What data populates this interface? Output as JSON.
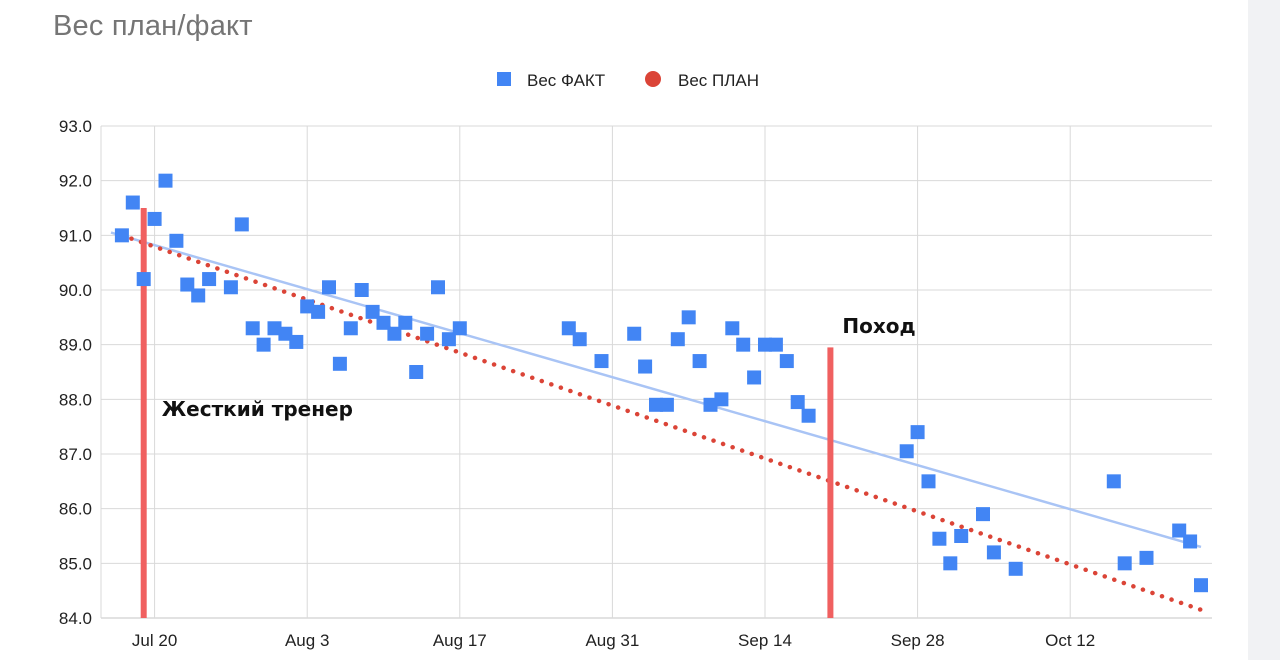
{
  "title": "Вес план/факт",
  "colors": {
    "fact": "#4285f4",
    "plan": "#db4437",
    "trend": "#a9c4f5",
    "marker": "#f06060",
    "grid": "#d9d9d9"
  },
  "chart_data": {
    "type": "scatter",
    "title": "Вес план/факт",
    "legend": {
      "placement": "top",
      "entries": [
        "Вес ФАКТ",
        "Вес ПЛАН"
      ]
    },
    "grid": true,
    "x_axis": {
      "type": "date",
      "range": [
        "2020-07-16",
        "2020-10-24"
      ],
      "ticks": [
        "2020-07-20",
        "2020-08-03",
        "2020-08-17",
        "2020-08-31",
        "2020-09-14",
        "2020-09-28",
        "2020-10-12"
      ],
      "tick_labels": [
        "Jul 20",
        "Aug 3",
        "Aug 17",
        "Aug 31",
        "Sep 14",
        "Sep 28",
        "Oct 12"
      ]
    },
    "y_axis": {
      "range": [
        84.0,
        93.0
      ],
      "ticks": [
        84.0,
        85.0,
        86.0,
        87.0,
        88.0,
        89.0,
        90.0,
        91.0,
        92.0,
        93.0
      ],
      "tick_labels": [
        "84.0",
        "85.0",
        "86.0",
        "87.0",
        "88.0",
        "89.0",
        "90.0",
        "91.0",
        "92.0",
        "93.0"
      ]
    },
    "series": [
      {
        "name": "Вес ФАКТ",
        "marker": "square",
        "points": [
          [
            "2020-07-17",
            91.0
          ],
          [
            "2020-07-18",
            91.6
          ],
          [
            "2020-07-19",
            90.2
          ],
          [
            "2020-07-20",
            91.3
          ],
          [
            "2020-07-21",
            92.0
          ],
          [
            "2020-07-22",
            90.9
          ],
          [
            "2020-07-23",
            90.1
          ],
          [
            "2020-07-24",
            89.9
          ],
          [
            "2020-07-25",
            90.2
          ],
          [
            "2020-07-27",
            90.05
          ],
          [
            "2020-07-28",
            91.2
          ],
          [
            "2020-07-29",
            89.3
          ],
          [
            "2020-07-30",
            89.0
          ],
          [
            "2020-07-31",
            89.3
          ],
          [
            "2020-08-01",
            89.2
          ],
          [
            "2020-08-02",
            89.05
          ],
          [
            "2020-08-03",
            89.7
          ],
          [
            "2020-08-04",
            89.6
          ],
          [
            "2020-08-05",
            90.05
          ],
          [
            "2020-08-06",
            88.65
          ],
          [
            "2020-08-07",
            89.3
          ],
          [
            "2020-08-08",
            90.0
          ],
          [
            "2020-08-09",
            89.6
          ],
          [
            "2020-08-10",
            89.4
          ],
          [
            "2020-08-11",
            89.2
          ],
          [
            "2020-08-12",
            89.4
          ],
          [
            "2020-08-13",
            88.5
          ],
          [
            "2020-08-14",
            89.2
          ],
          [
            "2020-08-15",
            90.05
          ],
          [
            "2020-08-16",
            89.1
          ],
          [
            "2020-08-17",
            89.3
          ],
          [
            "2020-08-27",
            89.3
          ],
          [
            "2020-08-28",
            89.1
          ],
          [
            "2020-08-30",
            88.7
          ],
          [
            "2020-09-02",
            89.2
          ],
          [
            "2020-09-03",
            88.6
          ],
          [
            "2020-09-04",
            87.9
          ],
          [
            "2020-09-05",
            87.9
          ],
          [
            "2020-09-06",
            89.1
          ],
          [
            "2020-09-07",
            89.5
          ],
          [
            "2020-09-08",
            88.7
          ],
          [
            "2020-09-09",
            87.9
          ],
          [
            "2020-09-10",
            88.0
          ],
          [
            "2020-09-11",
            89.3
          ],
          [
            "2020-09-12",
            89.0
          ],
          [
            "2020-09-13",
            88.4
          ],
          [
            "2020-09-14",
            89.0
          ],
          [
            "2020-09-15",
            89.0
          ],
          [
            "2020-09-16",
            88.7
          ],
          [
            "2020-09-17",
            87.95
          ],
          [
            "2020-09-18",
            87.7
          ],
          [
            "2020-09-27",
            87.05
          ],
          [
            "2020-09-28",
            87.4
          ],
          [
            "2020-09-29",
            86.5
          ],
          [
            "2020-09-30",
            85.45
          ],
          [
            "2020-10-01",
            85.0
          ],
          [
            "2020-10-02",
            85.5
          ],
          [
            "2020-10-04",
            85.9
          ],
          [
            "2020-10-05",
            85.2
          ],
          [
            "2020-10-07",
            84.9
          ],
          [
            "2020-10-16",
            86.5
          ],
          [
            "2020-10-17",
            85.0
          ],
          [
            "2020-10-19",
            85.1
          ],
          [
            "2020-10-22",
            85.6
          ],
          [
            "2020-10-23",
            85.4
          ],
          [
            "2020-10-24",
            84.6
          ]
        ]
      },
      {
        "name": "Вес ПЛАН",
        "marker": "dot",
        "line": "straight",
        "start": [
          "2020-07-17",
          91.0
        ],
        "end": [
          "2020-10-24",
          84.15
        ]
      }
    ],
    "trendline": {
      "series": "Вес ФАКТ",
      "start": [
        "2020-07-16",
        91.05
      ],
      "end": [
        "2020-10-24",
        85.3
      ]
    },
    "annotations": [
      {
        "label": "Жесткий тренер",
        "date": "2020-07-19",
        "from": 84.0,
        "to": 91.5
      },
      {
        "label": "Поход",
        "date": "2020-09-20",
        "from": 84.0,
        "to": 88.95
      }
    ]
  }
}
